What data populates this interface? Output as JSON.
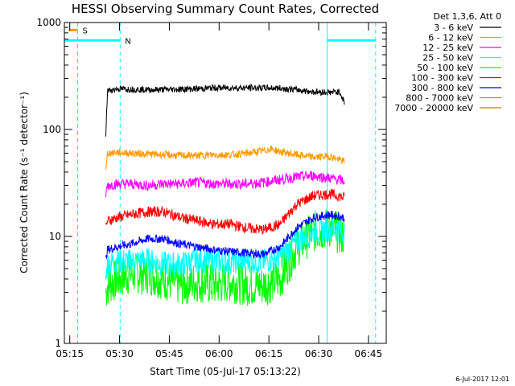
{
  "chart_data": {
    "type": "line",
    "title": "HESSI Observing Summary Count Rates, Corrected",
    "xlabel": "Start Time (05-Jul-17 05:13:22)",
    "ylabel": "Corrected Count Rate (s⁻¹ detector⁻¹)",
    "yscale": "log",
    "ylim": [
      1,
      1000
    ],
    "xlim_minutes_after_start": [
      0,
      97
    ],
    "x_ticks": [
      {
        "label": "05:15",
        "min": 1.63
      },
      {
        "label": "05:30",
        "min": 16.63
      },
      {
        "label": "05:45",
        "min": 31.63
      },
      {
        "label": "06:00",
        "min": 46.63
      },
      {
        "label": "06:15",
        "min": 61.63
      },
      {
        "label": "06:30",
        "min": 76.63
      },
      {
        "label": "06:45",
        "min": 91.63
      }
    ],
    "y_ticks": [
      {
        "label": "1000",
        "value": 1000
      },
      {
        "label": "100",
        "value": 100
      },
      {
        "label": "10",
        "value": 10
      },
      {
        "label": "1",
        "value": 1
      }
    ],
    "legend_header": "Det 1,3,6, Att 0",
    "legend_position": "outside-right",
    "series": [
      {
        "name": "3 - 6 keV",
        "color": "#000000",
        "x": [
          12.5,
          13,
          16,
          20,
          25,
          30,
          35,
          40,
          45,
          50,
          55,
          60,
          65,
          70,
          75,
          80,
          83,
          84.5
        ],
        "y": [
          90,
          230,
          240,
          238,
          235,
          236,
          238,
          240,
          245,
          245,
          245,
          245,
          243,
          235,
          225,
          222,
          225,
          175
        ]
      },
      {
        "name": "6 - 12 keV",
        "color": "#ff9900",
        "x": [
          12.5,
          13,
          16,
          20,
          25,
          30,
          35,
          40,
          45,
          50,
          55,
          60,
          62,
          65,
          70,
          75,
          80,
          84.5
        ],
        "y": [
          40,
          60,
          61,
          60,
          59,
          58,
          57,
          57,
          58,
          58,
          60,
          63,
          66,
          62,
          58,
          55,
          56,
          50
        ]
      },
      {
        "name": "12 - 25 keV",
        "color": "#ff00ff",
        "x": [
          12.5,
          13,
          16,
          20,
          25,
          30,
          35,
          40,
          45,
          50,
          55,
          60,
          65,
          70,
          75,
          80,
          84.5
        ],
        "y": [
          25,
          30,
          31,
          31,
          30,
          31,
          31,
          32,
          31,
          31,
          31,
          32,
          34,
          36,
          37,
          35,
          33
        ]
      },
      {
        "name": "25 - 50 keV",
        "color": "#00ffff",
        "x": [
          12.5,
          13,
          16,
          20,
          25,
          30,
          35,
          40,
          45,
          50,
          55,
          60,
          65,
          70,
          75,
          80,
          84.5
        ],
        "y": [
          4,
          5.5,
          6,
          5.8,
          6,
          5.5,
          5.5,
          6,
          5.8,
          5.8,
          6,
          5.8,
          6.5,
          9,
          11,
          12,
          11
        ]
      },
      {
        "name": "50 - 100 keV",
        "color": "#00ff00",
        "x": [
          12.5,
          13,
          16,
          20,
          25,
          30,
          35,
          40,
          45,
          50,
          55,
          60,
          65,
          70,
          75,
          80,
          84.5
        ],
        "y": [
          3,
          3.5,
          4,
          4.5,
          4.5,
          4,
          3.5,
          3.8,
          3.5,
          3.8,
          3.5,
          3.5,
          4,
          8,
          11,
          12,
          10
        ]
      },
      {
        "name": "100 - 300 keV",
        "color": "#ff0000",
        "x": [
          12.5,
          13,
          16,
          20,
          25,
          30,
          35,
          40,
          45,
          50,
          55,
          60,
          65,
          70,
          75,
          80,
          84.5
        ],
        "y": [
          12,
          14,
          15,
          16,
          17,
          17,
          15,
          14,
          13,
          13,
          12,
          11.5,
          13,
          20,
          24,
          25,
          23
        ]
      },
      {
        "name": "300 - 800 keV",
        "color": "#0000ff",
        "x": [
          12.5,
          13,
          16,
          20,
          25,
          30,
          35,
          40,
          45,
          50,
          55,
          60,
          65,
          70,
          75,
          80,
          84.5
        ],
        "y": [
          6,
          7.5,
          8,
          8.5,
          9.5,
          9.5,
          8.5,
          8,
          7.5,
          7.2,
          7,
          6.8,
          8,
          12,
          15,
          16,
          15
        ]
      },
      {
        "name": "800 - 7000 keV",
        "color": "#ff6347",
        "x": [],
        "y": []
      },
      {
        "name": "7000 - 20000 keV",
        "color": "#b8860b",
        "x": [],
        "y": []
      }
    ],
    "flags": [
      {
        "label": "S",
        "color": "#ff9900",
        "x": [
          1.3,
          4.0
        ],
        "level": 850,
        "marker_line_min": 4.0
      },
      {
        "label": "N",
        "color": "#00ffff",
        "x_segments": [
          [
            0,
            16.8
          ],
          [
            79.2,
            93.8
          ]
        ],
        "level": 680,
        "marker_lines_min": [
          0,
          16.8,
          79.2,
          93.8
        ]
      }
    ],
    "grid": false
  },
  "footer": {
    "timestamp": "6-Jul-2017 12:01"
  }
}
